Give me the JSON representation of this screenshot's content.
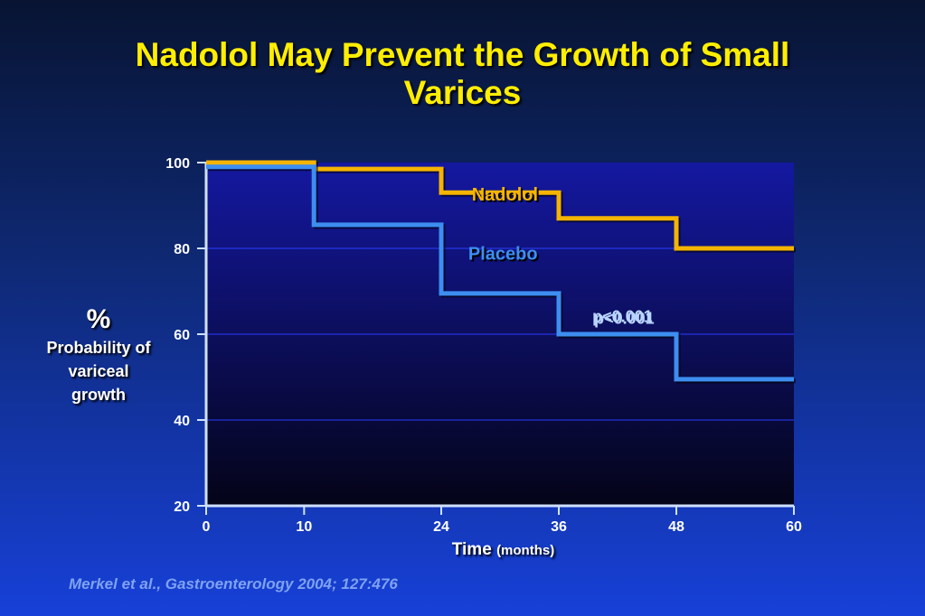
{
  "slide": {
    "title_line1": "Nadolol May Prevent the Growth of Small",
    "title_line2": "Varices",
    "citation": "Merkel et al., Gastroenterology 2004; 127:476"
  },
  "colors": {
    "nadolol": "#f5b400",
    "placebo": "#3d8ef0",
    "title": "#ffee00",
    "plot_bg_top": "#1418a0",
    "plot_bg_bottom": "#040418"
  },
  "chart_data": {
    "type": "line",
    "step": true,
    "title": "Nadolol May Prevent the Growth of Small Varices",
    "ylabel": {
      "symbol": "%",
      "text": "Probability of variceal growth"
    },
    "xlabel": {
      "text": "Time",
      "unit": "(months)"
    },
    "xlim": [
      0,
      60
    ],
    "ylim": [
      20,
      100
    ],
    "xticks": [
      0,
      10,
      24,
      36,
      48,
      60
    ],
    "yticks": [
      20,
      40,
      60,
      80,
      100
    ],
    "grid": true,
    "series": [
      {
        "name": "Nadolol",
        "color_key": "nadolol",
        "points": [
          [
            0,
            100
          ],
          [
            11,
            100
          ],
          [
            11,
            98.5
          ],
          [
            24,
            98.5
          ],
          [
            24,
            93
          ],
          [
            36,
            93
          ],
          [
            36,
            87
          ],
          [
            48,
            87
          ],
          [
            48,
            80
          ],
          [
            60,
            80
          ]
        ]
      },
      {
        "name": "Placebo",
        "color_key": "placebo",
        "points": [
          [
            0,
            99
          ],
          [
            11,
            99
          ],
          [
            11,
            85.5
          ],
          [
            24,
            85.5
          ],
          [
            24,
            69.5
          ],
          [
            36,
            69.5
          ],
          [
            36,
            60
          ],
          [
            48,
            60
          ],
          [
            48,
            49.5
          ],
          [
            60,
            49.5
          ]
        ]
      }
    ],
    "annotations": [
      {
        "text": "p<0.001"
      }
    ]
  }
}
